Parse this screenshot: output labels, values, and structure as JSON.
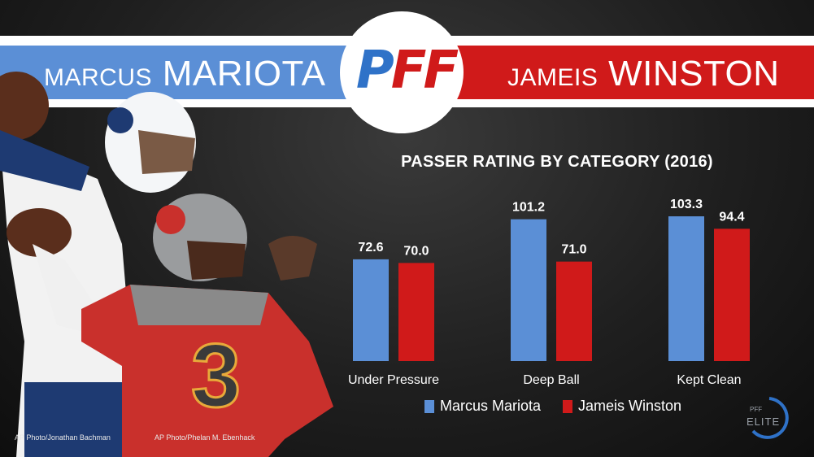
{
  "header": {
    "left_first": "MARCUS",
    "left_last": "MARIOTA",
    "right_first": "JAMEIS",
    "right_last": "WINSTON",
    "logo": "PFF"
  },
  "colors": {
    "blue": "#5b8fd6",
    "red": "#d01a1a",
    "logo_blue": "#2f72c8",
    "logo_red": "#d01a1a"
  },
  "chart_data": {
    "type": "bar",
    "title": "PASSER RATING BY CATEGORY (2016)",
    "categories": [
      "Under Pressure",
      "Deep Ball",
      "Kept Clean"
    ],
    "series": [
      {
        "name": "Marcus Mariota",
        "values": [
          72.6,
          101.2,
          103.3
        ],
        "labels": [
          "72.6",
          "101.2",
          "103.3"
        ]
      },
      {
        "name": "Jameis Winston",
        "values": [
          70.0,
          71.0,
          94.4
        ],
        "labels": [
          "70.0",
          "71.0",
          "94.4"
        ]
      }
    ],
    "ylim": [
      0,
      130
    ],
    "xlabel": "",
    "ylabel": "",
    "legend": "bottom"
  },
  "credits": {
    "left": "AP Photo/Jonathan Bachman",
    "right": "AP Photo/Phelan M. Ebenhack"
  },
  "badge": {
    "top": "PFF",
    "bottom": "ELITE"
  }
}
